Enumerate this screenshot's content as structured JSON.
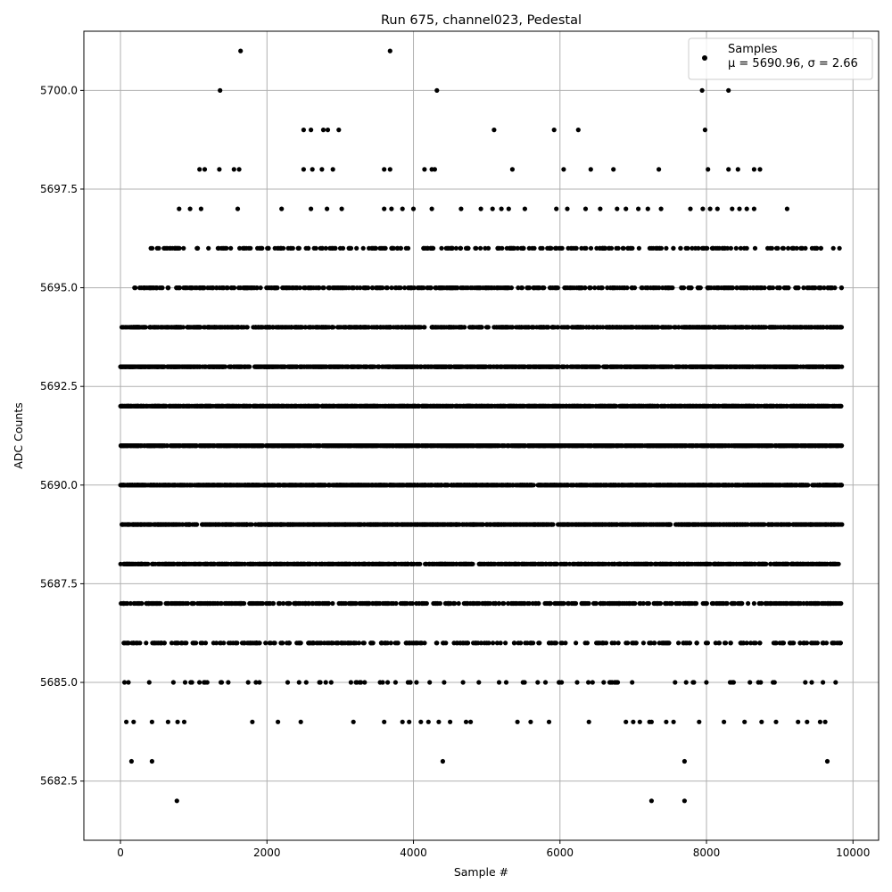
{
  "chart_data": {
    "type": "scatter",
    "title": "Run 675, channel023, Pedestal",
    "xlabel": "Sample #",
    "ylabel": "ADC Counts",
    "xlim": [
      -500,
      10350
    ],
    "ylim": [
      5681.0,
      5701.5
    ],
    "xticks": [
      0,
      2000,
      4000,
      6000,
      8000,
      10000
    ],
    "xtick_labels": [
      "0",
      "2000",
      "4000",
      "6000",
      "8000",
      "10000"
    ],
    "yticks": [
      5682.5,
      5685.0,
      5687.5,
      5690.0,
      5692.5,
      5695.0,
      5697.5,
      5700.0
    ],
    "ytick_labels": [
      "5682.5",
      "5685.0",
      "5687.5",
      "5690.0",
      "5692.5",
      "5695.0",
      "5697.5",
      "5700.0"
    ],
    "grid": true,
    "legend": {
      "placement": "top-right",
      "entries": [
        "Samples",
        "μ = 5690.96, σ = 2.66"
      ]
    },
    "marker_color": "#000000",
    "series": [
      {
        "name": "Samples",
        "dense_levels": [
          {
            "y": 5684,
            "x_range": [
              0,
              9850
            ],
            "approx_count": 13
          },
          {
            "y": 5685,
            "x_range": [
              0,
              9850
            ],
            "approx_count": 80
          },
          {
            "y": 5686,
            "x_range": [
              0,
              9850
            ],
            "approx_count": 330
          },
          {
            "y": 5687,
            "x_range": [
              0,
              9850
            ],
            "approx_count": 550
          },
          {
            "y": 5688,
            "x_range": [
              0,
              9850
            ],
            "approx_count": 920
          },
          {
            "y": 5689,
            "x_range": [
              0,
              9850
            ],
            "approx_count": 1180
          },
          {
            "y": 5690,
            "x_range": [
              0,
              9850
            ],
            "approx_count": 1420
          },
          {
            "y": 5691,
            "x_range": [
              0,
              9850
            ],
            "approx_count": 1500
          },
          {
            "y": 5692,
            "x_range": [
              0,
              9850
            ],
            "approx_count": 1430
          },
          {
            "y": 5693,
            "x_range": [
              0,
              9850
            ],
            "approx_count": 1150
          },
          {
            "y": 5694,
            "x_range": [
              0,
              9850
            ],
            "approx_count": 810
          },
          {
            "y": 5695,
            "x_range": [
              150,
              9850
            ],
            "approx_count": 480
          },
          {
            "y": 5696,
            "x_range": [
              250,
              9850
            ],
            "approx_count": 280
          }
        ],
        "points": [
          [
            150,
            5683
          ],
          [
            430,
            5683
          ],
          [
            4400,
            5683
          ],
          [
            7700,
            5683
          ],
          [
            9650,
            5683
          ],
          [
            770,
            5682
          ],
          [
            7250,
            5682
          ],
          [
            7700,
            5682
          ],
          [
            80,
            5684
          ],
          [
            180,
            5684
          ],
          [
            430,
            5684
          ],
          [
            650,
            5684
          ],
          [
            780,
            5684
          ],
          [
            1800,
            5684
          ],
          [
            2150,
            5684
          ],
          [
            3180,
            5684
          ],
          [
            3600,
            5684
          ],
          [
            3850,
            5684
          ],
          [
            4100,
            5684
          ],
          [
            4500,
            5684
          ],
          [
            4780,
            5684
          ],
          [
            5420,
            5684
          ],
          [
            5600,
            5684
          ],
          [
            5850,
            5684
          ],
          [
            6900,
            5684
          ],
          [
            7000,
            5684
          ],
          [
            7250,
            5684
          ],
          [
            7450,
            5684
          ],
          [
            7550,
            5684
          ],
          [
            7900,
            5684
          ],
          [
            8520,
            5684
          ],
          [
            8950,
            5684
          ],
          [
            9250,
            5684
          ],
          [
            9620,
            5684
          ],
          [
            800,
            5697
          ],
          [
            950,
            5697
          ],
          [
            1100,
            5697
          ],
          [
            1600,
            5697
          ],
          [
            2200,
            5697
          ],
          [
            2600,
            5697
          ],
          [
            2820,
            5697
          ],
          [
            3020,
            5697
          ],
          [
            3600,
            5697
          ],
          [
            3700,
            5697
          ],
          [
            3850,
            5697
          ],
          [
            4000,
            5697
          ],
          [
            4250,
            5697
          ],
          [
            4650,
            5697
          ],
          [
            4920,
            5697
          ],
          [
            5080,
            5697
          ],
          [
            5200,
            5697
          ],
          [
            5300,
            5697
          ],
          [
            5520,
            5697
          ],
          [
            5950,
            5697
          ],
          [
            6100,
            5697
          ],
          [
            6350,
            5697
          ],
          [
            6550,
            5697
          ],
          [
            6780,
            5697
          ],
          [
            6900,
            5697
          ],
          [
            7070,
            5697
          ],
          [
            7200,
            5697
          ],
          [
            7380,
            5697
          ],
          [
            7780,
            5697
          ],
          [
            7950,
            5697
          ],
          [
            8050,
            5697
          ],
          [
            8150,
            5697
          ],
          [
            8350,
            5697
          ],
          [
            8450,
            5697
          ],
          [
            8550,
            5697
          ],
          [
            8650,
            5697
          ],
          [
            9100,
            5697
          ],
          [
            1080,
            5698
          ],
          [
            1150,
            5698
          ],
          [
            1350,
            5698
          ],
          [
            1550,
            5698
          ],
          [
            1620,
            5698
          ],
          [
            2500,
            5698
          ],
          [
            2620,
            5698
          ],
          [
            2750,
            5698
          ],
          [
            2900,
            5698
          ],
          [
            3600,
            5698
          ],
          [
            3680,
            5698
          ],
          [
            4150,
            5698
          ],
          [
            4250,
            5698
          ],
          [
            4290,
            5698
          ],
          [
            5350,
            5698
          ],
          [
            6050,
            5698
          ],
          [
            6420,
            5698
          ],
          [
            6730,
            5698
          ],
          [
            7350,
            5698
          ],
          [
            8020,
            5698
          ],
          [
            8300,
            5698
          ],
          [
            8430,
            5698
          ],
          [
            8650,
            5698
          ],
          [
            8730,
            5698
          ],
          [
            2500,
            5699
          ],
          [
            2600,
            5699
          ],
          [
            2770,
            5699
          ],
          [
            2830,
            5699
          ],
          [
            2980,
            5699
          ],
          [
            5100,
            5699
          ],
          [
            5920,
            5699
          ],
          [
            6250,
            5699
          ],
          [
            7980,
            5699
          ],
          [
            1360,
            5700
          ],
          [
            4320,
            5700
          ],
          [
            7940,
            5700
          ],
          [
            8300,
            5700
          ],
          [
            1640,
            5701
          ],
          [
            3680,
            5701
          ]
        ]
      }
    ]
  }
}
